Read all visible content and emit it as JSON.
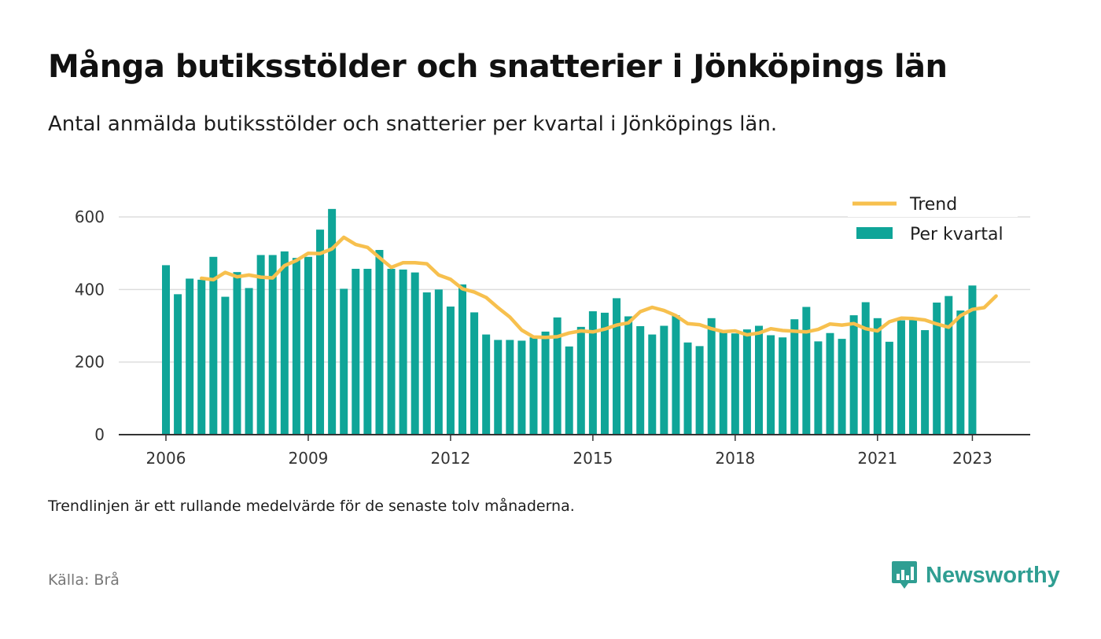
{
  "title": "Många butiksstölder och snatterier i Jönköpings län",
  "subtitle": "Antal anmälda butiksstölder och snatterier per kvartal i Jönköpings län.",
  "note": "Trendlinjen är ett rullande medelvärde för de senaste tolv månaderna.",
  "source": "Källa: Brå",
  "brand": {
    "name": "Newsworthy",
    "icon": "newsworthy-chart-bubble-icon"
  },
  "colors": {
    "bars": "#0fa598",
    "trend": "#f7c04e",
    "grid": "#dddddd",
    "axis": "#333333",
    "brand": "#2f9e92"
  },
  "chart_data": {
    "type": "bar",
    "title": "Många butiksstölder och snatterier i Jönköpings län",
    "subtitle": "Antal anmälda butiksstölder och snatterier per kvartal i Jönköpings län.",
    "xlabel": "",
    "ylabel": "",
    "ylim": [
      0,
      600
    ],
    "yticks": [
      0,
      200,
      400,
      600
    ],
    "grid": "horizontal",
    "legend_position": "top-right",
    "x_start": "2006 Q1",
    "x_tick_labels": [
      {
        "label": "2006",
        "index": 0
      },
      {
        "label": "2009",
        "index": 12
      },
      {
        "label": "2012",
        "index": 24
      },
      {
        "label": "2015",
        "index": 36
      },
      {
        "label": "2018",
        "index": 48
      },
      {
        "label": "2021",
        "index": 60
      },
      {
        "label": "2023",
        "index": 68
      }
    ],
    "series": [
      {
        "name": "Per kvartal",
        "type": "bar",
        "values": [
          467,
          387,
          430,
          427,
          490,
          380,
          448,
          404,
          495,
          495,
          505,
          487,
          490,
          565,
          622,
          402,
          457,
          457,
          509,
          457,
          455,
          447,
          392,
          400,
          353,
          414,
          337,
          276,
          261,
          261,
          259,
          268,
          284,
          323,
          243,
          297,
          340,
          336,
          376,
          326,
          299,
          276,
          300,
          329,
          254,
          244,
          321,
          282,
          279,
          290,
          300,
          274,
          268,
          318,
          352,
          257,
          280,
          264,
          329,
          365,
          321,
          256,
          315,
          323,
          288,
          364,
          382,
          342,
          411
        ]
      },
      {
        "name": "Trend",
        "type": "line",
        "start_index": 3,
        "values": [
          431,
          427,
          447,
          435,
          440,
          434,
          432,
          466,
          480,
          500,
          499,
          512,
          544,
          524,
          516,
          488,
          461,
          474,
          474,
          471,
          440,
          428,
          402,
          393,
          378,
          350,
          324,
          288,
          269,
          268,
          270,
          280,
          286,
          283,
          291,
          302,
          308,
          339,
          351,
          342,
          328,
          306,
          303,
          292,
          284,
          286,
          275,
          280,
          292,
          287,
          285,
          283,
          290,
          305,
          302,
          306,
          292,
          286,
          311,
          321,
          320,
          316,
          305,
          296,
          328,
          345,
          350,
          382
        ]
      }
    ]
  }
}
